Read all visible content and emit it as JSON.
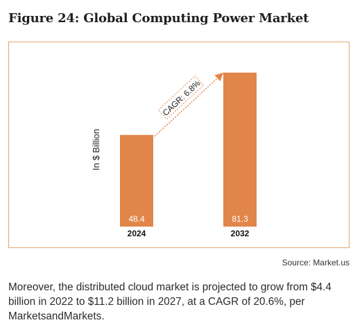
{
  "figure": {
    "title": "Figure 24: Global Computing Power Market"
  },
  "chart_data": {
    "type": "bar",
    "categories": [
      "2024",
      "2032"
    ],
    "values": [
      48.4,
      81.3
    ],
    "value_labels": [
      "48.4",
      "81.3"
    ],
    "title": "",
    "xlabel": "",
    "ylabel": "In $ Billion",
    "ylim": [
      0,
      90
    ],
    "grid": false,
    "legend": "none",
    "bar_color": "#e2854a",
    "annotation": {
      "text": "CAGR: 6.8%",
      "from_category": "2024",
      "to_category": "2032",
      "style": "dotted-arrow"
    }
  },
  "source": "Source: Market.us",
  "body_text": "Moreover, the distributed cloud market is projected to grow from $4.4 billion in 2022 to $11.2 billion in 2027, at a CAGR of 20.6%, per MarketsandMarkets.",
  "colors": {
    "bar": "#e2854a",
    "border": "#e5a56f",
    "bar_label": "#ffffff",
    "text": "#2b2b2b"
  }
}
